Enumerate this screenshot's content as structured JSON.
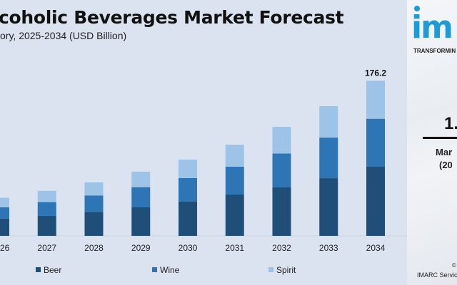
{
  "chart_data": {
    "type": "bar",
    "stacked": true,
    "title": "coholic Beverages Market Forecast",
    "subtitle": "ory, 2025-2034 (USD Billion)",
    "categories": [
      "2026",
      "2027",
      "2028",
      "2029",
      "2030",
      "2031",
      "2032",
      "2033",
      "2034"
    ],
    "series": [
      {
        "name": "Beer",
        "color": "#1f4e79",
        "values": [
          19.7,
          22.7,
          27.3,
          32.4,
          39.1,
          46.9,
          55.3,
          65.5,
          78.5
        ]
      },
      {
        "name": "Wine",
        "color": "#2e75b6",
        "values": [
          12.7,
          15.6,
          18.6,
          22.9,
          26.5,
          31.6,
          38.3,
          46.1,
          54.5
        ]
      },
      {
        "name": "Spirit",
        "color": "#9dc3e6",
        "values": [
          10.8,
          12.9,
          14.8,
          17.6,
          21.0,
          25.1,
          30.2,
          35.8,
          43.2
        ]
      }
    ],
    "data_labels": {
      "2034": "176.2"
    },
    "ylim": [
      0,
      180
    ],
    "grid": false,
    "legend_position": "bottom"
  },
  "side_panel": {
    "logo_text": "im",
    "tagline": "TRANSFORMIN",
    "big_value": "1.",
    "caption_line1": "Mar",
    "caption_line2": "(20",
    "copyright_symbol": "©",
    "source": "IMARC Servic"
  }
}
